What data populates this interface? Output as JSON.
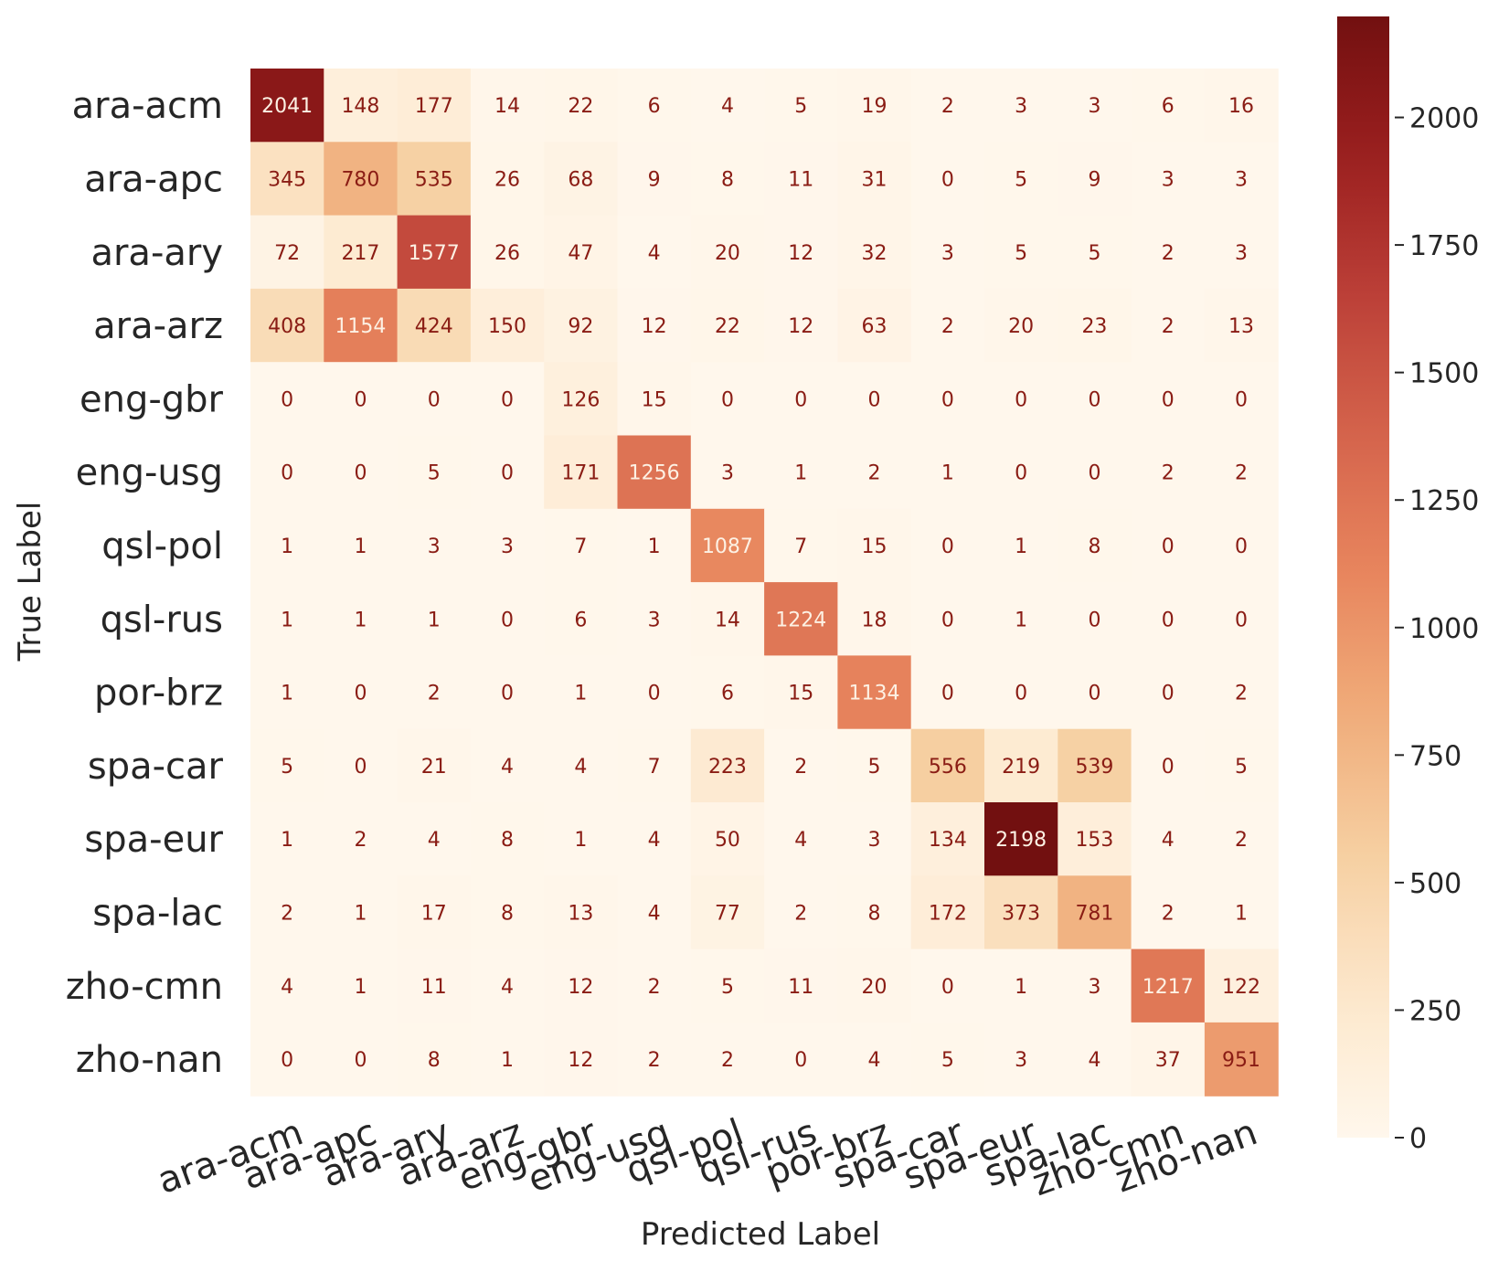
{
  "chart_data": {
    "type": "heatmap",
    "title": "",
    "xlabel": "Predicted Label",
    "ylabel": "True Label",
    "row_labels": [
      "ara-acm",
      "ara-apc",
      "ara-ary",
      "ara-arz",
      "eng-gbr",
      "eng-usg",
      "qsl-pol",
      "qsl-rus",
      "por-brz",
      "spa-car",
      "spa-eur",
      "spa-lac",
      "zho-cmn",
      "zho-nan"
    ],
    "col_labels": [
      "ara-acm",
      "ara-apc",
      "ara-ary",
      "ara-arz",
      "eng-gbr",
      "eng-usg",
      "qsl-pol",
      "qsl-rus",
      "por-brz",
      "spa-car",
      "spa-eur",
      "spa-lac",
      "zho-cmn",
      "zho-nan"
    ],
    "values": [
      [
        2041,
        148,
        177,
        14,
        22,
        6,
        4,
        5,
        19,
        2,
        3,
        3,
        6,
        16
      ],
      [
        345,
        780,
        535,
        26,
        68,
        9,
        8,
        11,
        31,
        0,
        5,
        9,
        3,
        3
      ],
      [
        72,
        217,
        1577,
        26,
        47,
        4,
        20,
        12,
        32,
        3,
        5,
        5,
        2,
        3
      ],
      [
        408,
        1154,
        424,
        150,
        92,
        12,
        22,
        12,
        63,
        2,
        20,
        23,
        2,
        13
      ],
      [
        0,
        0,
        0,
        0,
        126,
        15,
        0,
        0,
        0,
        0,
        0,
        0,
        0,
        0
      ],
      [
        0,
        0,
        5,
        0,
        171,
        1256,
        3,
        1,
        2,
        1,
        0,
        0,
        2,
        2
      ],
      [
        1,
        1,
        3,
        3,
        7,
        1,
        1087,
        7,
        15,
        0,
        1,
        8,
        0,
        0
      ],
      [
        1,
        1,
        1,
        0,
        6,
        3,
        14,
        1224,
        18,
        0,
        1,
        0,
        0,
        0
      ],
      [
        1,
        0,
        2,
        0,
        1,
        0,
        6,
        15,
        1134,
        0,
        0,
        0,
        0,
        2
      ],
      [
        5,
        0,
        21,
        4,
        4,
        7,
        223,
        2,
        5,
        556,
        219,
        539,
        0,
        5
      ],
      [
        1,
        2,
        4,
        8,
        1,
        4,
        50,
        4,
        3,
        134,
        2198,
        153,
        4,
        2
      ],
      [
        2,
        1,
        17,
        8,
        13,
        4,
        77,
        2,
        8,
        172,
        373,
        781,
        2,
        1
      ],
      [
        4,
        1,
        11,
        4,
        12,
        2,
        5,
        11,
        20,
        0,
        1,
        3,
        1217,
        122
      ],
      [
        0,
        0,
        8,
        1,
        12,
        2,
        2,
        0,
        4,
        5,
        3,
        4,
        37,
        951
      ]
    ],
    "colormap": "OrRd",
    "color_range": [
      0,
      2198
    ],
    "colorbar_ticks": [
      0,
      250,
      500,
      750,
      1000,
      1250,
      1500,
      1750,
      2000
    ],
    "grid": false
  }
}
